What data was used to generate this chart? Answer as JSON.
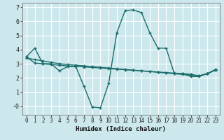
{
  "xlabel": "Humidex (Indice chaleur)",
  "bg_color": "#cce8ec",
  "grid_color": "#ffffff",
  "line_color": "#1a6b6b",
  "xlim": [
    -0.5,
    23.5
  ],
  "ylim": [
    -0.6,
    7.3
  ],
  "yticks": [
    0,
    1,
    2,
    3,
    4,
    5,
    6,
    7
  ],
  "ytick_labels": [
    "-0",
    "1",
    "2",
    "3",
    "4",
    "5",
    "6",
    "7"
  ],
  "xticks": [
    0,
    1,
    2,
    3,
    4,
    5,
    6,
    7,
    8,
    9,
    10,
    11,
    12,
    13,
    14,
    15,
    16,
    17,
    18,
    19,
    20,
    21,
    22,
    23
  ],
  "line1_x": [
    0,
    1,
    2,
    3,
    4,
    5,
    6,
    7,
    8,
    9,
    10,
    11,
    12,
    13,
    14,
    15,
    16,
    17,
    18,
    19,
    20,
    21,
    22,
    23
  ],
  "line1_y": [
    3.5,
    4.1,
    3.0,
    3.0,
    2.5,
    2.8,
    2.8,
    1.4,
    -0.05,
    -0.1,
    1.6,
    5.2,
    6.75,
    6.8,
    6.6,
    5.2,
    4.1,
    4.1,
    2.3,
    2.3,
    2.1,
    2.1,
    2.3,
    2.6
  ],
  "line2_x": [
    0,
    1,
    2,
    3,
    4,
    5,
    6,
    7,
    8,
    9,
    10,
    11,
    12,
    13,
    14,
    15,
    16,
    17,
    18,
    19,
    20,
    21,
    22,
    23
  ],
  "line2_y": [
    3.4,
    3.3,
    3.2,
    3.1,
    3.0,
    2.95,
    2.9,
    2.85,
    2.8,
    2.75,
    2.7,
    2.65,
    2.6,
    2.55,
    2.5,
    2.45,
    2.4,
    2.35,
    2.3,
    2.25,
    2.2,
    2.15,
    2.3,
    2.55
  ],
  "line3_x": [
    0,
    1,
    2,
    3,
    4,
    5,
    6,
    7,
    8,
    9,
    10,
    11,
    12,
    13,
    14,
    15,
    16,
    17,
    18,
    19,
    20,
    21,
    22,
    23
  ],
  "line3_y": [
    3.5,
    3.05,
    3.0,
    2.95,
    2.9,
    2.85,
    2.82,
    2.78,
    2.74,
    2.7,
    2.66,
    2.62,
    2.58,
    2.54,
    2.5,
    2.46,
    2.42,
    2.38,
    2.34,
    2.3,
    2.26,
    2.15,
    2.3,
    2.55
  ]
}
